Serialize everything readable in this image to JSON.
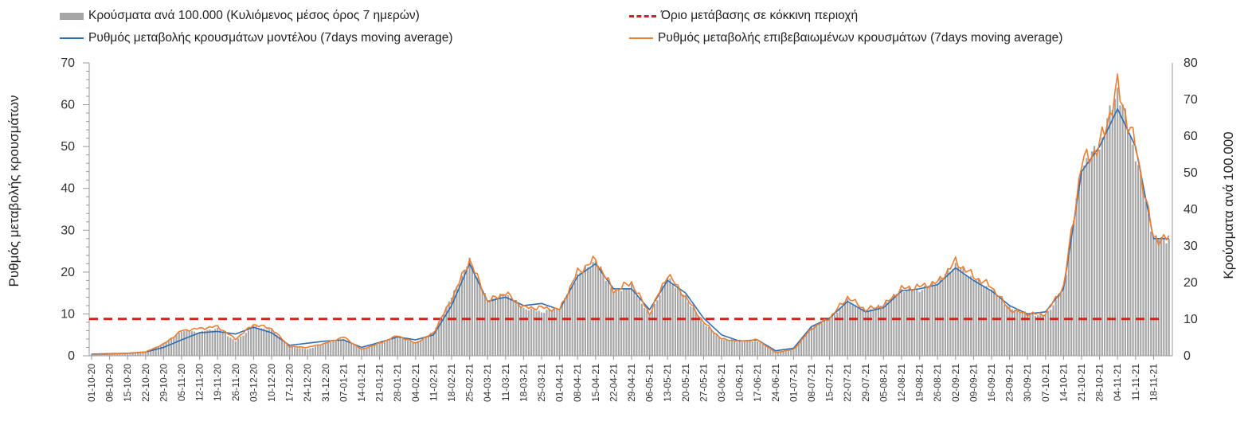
{
  "legend": {
    "bars": "Κρούσματα ανά 100.000 (Κυλιόμενος μέσος όρος 7 ημερών)",
    "threshold": "Όριο μετάβασης σε κόκκινη περιοχή",
    "model": "Ρυθμός μεταβολής κρουσμάτων μοντέλου (7days moving average)",
    "confirmed": "Ρυθμός μεταβολής επιβεβαιωμένων κρουσμάτων (7days moving average)"
  },
  "chart_data": {
    "type": "bar",
    "y_left_label": "Ρυθμός μεταβολής κρουσμάτων",
    "y_right_label": "Κρούσματα ανά 100.000",
    "y_left_ticks": [
      0,
      10,
      20,
      30,
      40,
      50,
      60,
      70
    ],
    "y_right_ticks": [
      0,
      10,
      20,
      30,
      40,
      50,
      60,
      70,
      80
    ],
    "ylim_left": [
      0,
      70
    ],
    "ylim_right": [
      0,
      80
    ],
    "x_tick_labels": [
      "01-10-20",
      "08-10-20",
      "15-10-20",
      "22-10-20",
      "29-10-20",
      "05-11-20",
      "12-11-20",
      "19-11-20",
      "26-11-20",
      "03-12-20",
      "10-12-20",
      "17-12-20",
      "24-12-20",
      "31-12-20",
      "07-01-21",
      "14-01-21",
      "21-01-21",
      "28-01-21",
      "04-02-21",
      "11-02-21",
      "18-02-21",
      "25-02-21",
      "04-03-21",
      "11-03-21",
      "18-03-21",
      "25-03-21",
      "01-04-21",
      "08-04-21",
      "15-04-21",
      "22-04-21",
      "29-04-21",
      "06-05-21",
      "13-05-21",
      "20-05-21",
      "27-05-21",
      "03-06-21",
      "10-06-21",
      "17-06-21",
      "24-06-21",
      "01-07-21",
      "08-07-21",
      "15-07-21",
      "22-07-21",
      "29-07-21",
      "05-08-21",
      "12-08-21",
      "19-08-21",
      "26-08-21",
      "02-09-21",
      "09-09-21",
      "16-09-21",
      "23-09-21",
      "30-09-21",
      "07-10-21",
      "14-10-21",
      "21-10-21",
      "28-10-21",
      "04-11-21",
      "11-11-21",
      "18-11-21"
    ],
    "threshold_left": 8.8,
    "series": [
      {
        "name": "Κρούσματα ανά 100.000 (Κυλιόμενος μέσος όρος 7 ημερών)",
        "kind": "bar",
        "axis": "right",
        "color": "#a6a6a6",
        "weekly_values": [
          0.5,
          0.6,
          0.8,
          1.2,
          3.2,
          6.8,
          6.5,
          7.5,
          4.0,
          8.0,
          7.0,
          2.5,
          1.8,
          3.5,
          4.5,
          1.8,
          3.5,
          5.0,
          3.5,
          6.5,
          16.0,
          26.0,
          15.0,
          17.0,
          13.0,
          12.0,
          13.0,
          22.0,
          26.0,
          17.5,
          19.0,
          11.0,
          21.5,
          16.0,
          9.0,
          4.5,
          3.8,
          4.0,
          1.0,
          1.5,
          8.0,
          10.0,
          15.0,
          12.0,
          14.0,
          18.0,
          18.0,
          20.0,
          25.0,
          21.0,
          18.0,
          13.0,
          11.5,
          11.0,
          18.0,
          52.0,
          57.0,
          73.0,
          55.0,
          32.0
        ]
      },
      {
        "name": "Ρυθμός μεταβολής κρουσμάτων μοντέλου (7days moving average)",
        "kind": "line",
        "axis": "left",
        "color": "#2e6db4",
        "weekly_values": [
          0.4,
          0.5,
          0.6,
          0.9,
          2.0,
          3.8,
          5.5,
          5.8,
          5.2,
          6.8,
          5.5,
          2.5,
          3.0,
          3.5,
          3.8,
          2.0,
          3.2,
          4.5,
          3.8,
          5.0,
          12.0,
          22.0,
          13.0,
          14.0,
          12.0,
          12.5,
          11.0,
          19.0,
          22.0,
          16.0,
          16.0,
          11.0,
          18.0,
          15.0,
          9.0,
          5.0,
          3.5,
          3.8,
          1.2,
          1.8,
          7.0,
          9.0,
          13.0,
          10.5,
          11.5,
          15.5,
          16.0,
          17.0,
          21.0,
          18.0,
          15.5,
          12.0,
          10.0,
          10.5,
          16.0,
          44.0,
          50.0,
          59.0,
          50.0,
          28.0
        ]
      },
      {
        "name": "Ρυθμός μεταβολής επιβεβαιωμένων κρουσμάτων (7days moving average)",
        "kind": "line",
        "axis": "left",
        "color": "#ed7d31",
        "weekly_values": [
          0.3,
          0.4,
          0.6,
          0.9,
          2.8,
          6.0,
          6.5,
          7.0,
          4.0,
          7.5,
          6.5,
          2.2,
          2.0,
          3.0,
          4.5,
          1.5,
          3.0,
          4.8,
          3.0,
          5.5,
          13.5,
          23.0,
          13.0,
          15.0,
          11.5,
          11.5,
          11.0,
          20.0,
          23.0,
          15.5,
          17.5,
          10.0,
          19.5,
          14.0,
          8.0,
          4.0,
          3.5,
          3.8,
          0.8,
          1.5,
          6.5,
          9.0,
          14.0,
          11.0,
          12.0,
          16.0,
          16.5,
          17.5,
          22.5,
          19.0,
          16.5,
          11.0,
          10.0,
          10.0,
          16.5,
          46.0,
          50.0,
          64.0,
          50.0,
          28.0
        ]
      }
    ]
  }
}
